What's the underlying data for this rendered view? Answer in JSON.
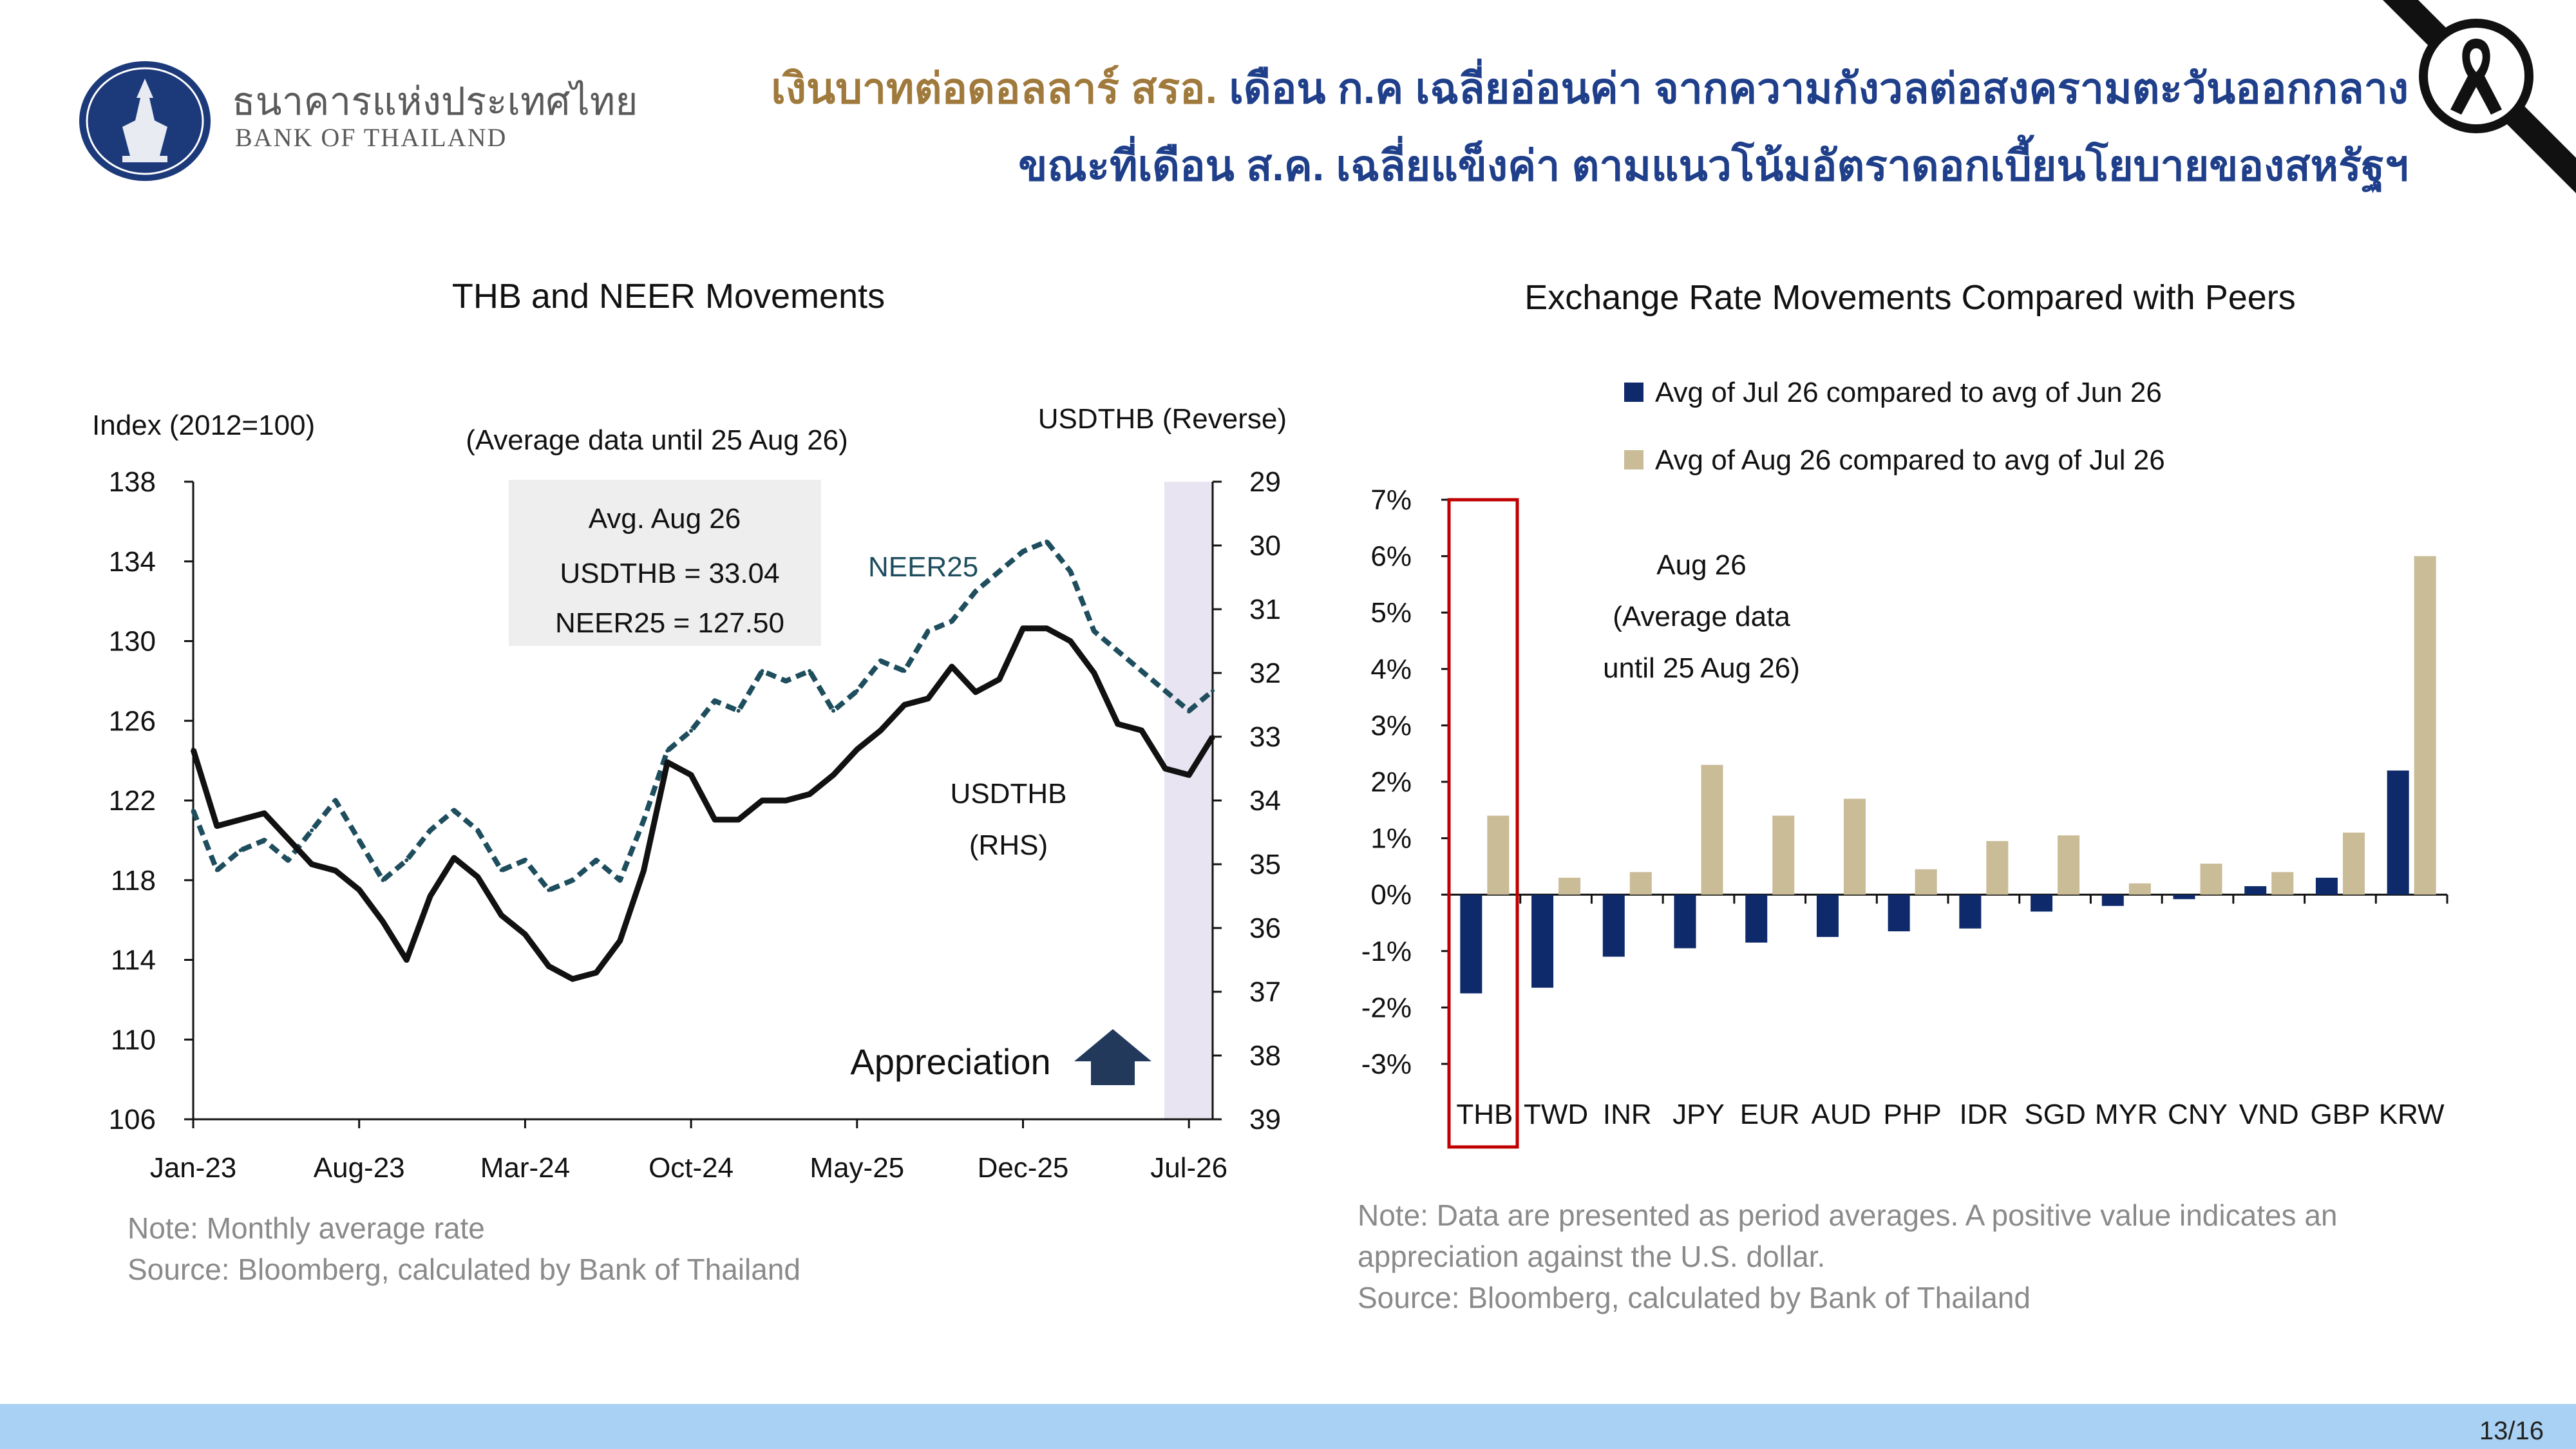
{
  "header": {
    "org_name_th": "ธนาคารแห่งประเทศไทย",
    "org_name_en": "BANK OF THAILAND",
    "headline_line1_part1": "เงินบาทต่อดอลลาร์ สรอ.",
    "headline_line1_part2": "เดือน ก.ค เฉลี่ยอ่อนค่า จากความกังวลต่อสงครามตะวันออกกลาง",
    "headline_line2": "ขณะที่เดือน ส.ค. เฉลี่ยแข็งค่า ตามแนวโน้มอัตราดอกเบี้ยนโยบายของสหรัฐฯ",
    "ribbon_icon": "mourning-ribbon-icon"
  },
  "left_panel": {
    "note": "Note: Monthly average rate",
    "source": "Source: Bloomberg, calculated by Bank of Thailand"
  },
  "right_panel": {
    "note_line1": "Note: Data are presented as period averages. A positive value indicates an",
    "note_line2": "appreciation against the U.S. dollar.",
    "source": "Source: Bloomberg, calculated by Bank of Thailand"
  },
  "page_number": "13/16",
  "colors": {
    "navy": "#0e2a6b",
    "tan": "#c9bc96",
    "teal": "#1e4e5e",
    "highlight": "#c00000",
    "footer": "#a9d1f3",
    "headline_brown": "#a07a3c",
    "headline_blue": "#1f3f8a"
  },
  "chart_data": [
    {
      "type": "line",
      "title": "THB and NEER Movements",
      "subtitle": "(Average data until 25 Aug 26)",
      "ylabel_left": "Index (2012=100)",
      "ylabel_right": "USDTHB (Reverse)",
      "ylim_left": [
        106,
        138
      ],
      "yticks_left": [
        "138",
        "134",
        "130",
        "126",
        "122",
        "118",
        "114",
        "110",
        "106"
      ],
      "ylim_right_reversed": [
        29,
        39
      ],
      "yticks_right": [
        "29",
        "30",
        "31",
        "32",
        "33",
        "34",
        "35",
        "36",
        "37",
        "38",
        "39"
      ],
      "xticks": [
        "Jan-23",
        "Aug-23",
        "Mar-24",
        "Oct-24",
        "May-25",
        "Dec-25",
        "Jul-26"
      ],
      "x_start": "2023-01",
      "x_end": "2026-08",
      "series": [
        {
          "name": "NEER25",
          "axis": "left",
          "style": "dashed",
          "color": "#1e4e5e",
          "x": [
            "2023-01",
            "2023-02",
            "2023-03",
            "2023-04",
            "2023-05",
            "2023-06",
            "2023-07",
            "2023-08",
            "2023-09",
            "2023-10",
            "2023-11",
            "2023-12",
            "2024-01",
            "2024-02",
            "2024-03",
            "2024-04",
            "2024-05",
            "2024-06",
            "2024-07",
            "2024-08",
            "2024-09",
            "2024-10",
            "2024-11",
            "2024-12",
            "2025-01",
            "2025-02",
            "2025-03",
            "2025-04",
            "2025-05",
            "2025-06",
            "2025-07",
            "2025-08",
            "2025-09",
            "2025-10",
            "2025-11",
            "2025-12",
            "2026-01",
            "2026-02",
            "2026-03",
            "2026-04",
            "2026-05",
            "2026-06",
            "2026-07",
            "2026-08"
          ],
          "values": [
            121.5,
            118.5,
            119.5,
            120.0,
            119.0,
            120.5,
            122.0,
            120.0,
            118.0,
            119.0,
            120.5,
            121.5,
            120.5,
            118.5,
            119.0,
            117.5,
            118.0,
            119.0,
            118.0,
            121.0,
            124.5,
            125.5,
            127.0,
            126.5,
            128.5,
            128.0,
            128.5,
            126.5,
            127.5,
            129.0,
            128.5,
            130.5,
            131.0,
            132.5,
            133.5,
            134.5,
            135.0,
            133.5,
            130.5,
            129.5,
            128.5,
            127.5,
            126.5,
            127.5
          ]
        },
        {
          "name": "USDTHB",
          "label": "USDTHB",
          "label_line2": "(RHS)",
          "axis": "right",
          "style": "solid",
          "color": "#111111",
          "x": [
            "2023-01",
            "2023-02",
            "2023-03",
            "2023-04",
            "2023-05",
            "2023-06",
            "2023-07",
            "2023-08",
            "2023-09",
            "2023-10",
            "2023-11",
            "2023-12",
            "2024-01",
            "2024-02",
            "2024-03",
            "2024-04",
            "2024-05",
            "2024-06",
            "2024-07",
            "2024-08",
            "2024-09",
            "2024-10",
            "2024-11",
            "2024-12",
            "2025-01",
            "2025-02",
            "2025-03",
            "2025-04",
            "2025-05",
            "2025-06",
            "2025-07",
            "2025-08",
            "2025-09",
            "2025-10",
            "2025-11",
            "2025-12",
            "2026-01",
            "2026-02",
            "2026-03",
            "2026-04",
            "2026-05",
            "2026-06",
            "2026-07",
            "2026-08"
          ],
          "values": [
            33.2,
            34.4,
            34.3,
            34.2,
            34.6,
            35.0,
            35.1,
            35.4,
            35.9,
            36.5,
            35.5,
            34.9,
            35.2,
            35.8,
            36.1,
            36.6,
            36.8,
            36.7,
            36.2,
            35.1,
            33.4,
            33.6,
            34.3,
            34.3,
            34.0,
            34.0,
            33.9,
            33.6,
            33.2,
            32.9,
            32.5,
            32.4,
            31.9,
            32.3,
            32.1,
            31.3,
            31.3,
            31.5,
            32.0,
            32.8,
            32.9,
            33.5,
            33.6,
            33.0
          ]
        }
      ],
      "box_title": "Avg. Aug 26",
      "box_line1": "USDTHB = 33.04",
      "box_line2": "NEER25 = 127.50",
      "arrow_label": "Appreciation",
      "arrow_icon": "up-arrow-icon"
    },
    {
      "type": "bar",
      "title": "Exchange Rate Movements Compared with Peers",
      "categories": [
        "THB",
        "TWD",
        "INR",
        "JPY",
        "EUR",
        "AUD",
        "PHP",
        "IDR",
        "SGD",
        "MYR",
        "CNY",
        "VND",
        "GBP",
        "KRW"
      ],
      "ylim": [
        -3,
        7
      ],
      "yticks": [
        "7%",
        "6%",
        "5%",
        "4%",
        "3%",
        "2%",
        "1%",
        "0%",
        "-1%",
        "-2%",
        "-3%"
      ],
      "series": [
        {
          "name": "Avg of Jul 26 compared to avg of Jun 26",
          "color": "#0e2a6b",
          "values": [
            -1.75,
            -1.65,
            -1.1,
            -0.95,
            -0.85,
            -0.75,
            -0.65,
            -0.6,
            -0.3,
            -0.2,
            -0.08,
            0.15,
            0.3,
            2.2
          ]
        },
        {
          "name": "Avg of Aug 26 compared to avg of Jul 26",
          "color": "#c9bc96",
          "values": [
            1.4,
            0.3,
            0.4,
            2.3,
            1.4,
            1.7,
            0.45,
            0.95,
            1.05,
            0.2,
            0.55,
            0.4,
            1.1,
            6.0
          ]
        }
      ],
      "highlight_category": "THB",
      "annotation_line1": "Aug 26",
      "annotation_line2": "(Average data",
      "annotation_line3": "until 25 Aug 26)"
    }
  ]
}
